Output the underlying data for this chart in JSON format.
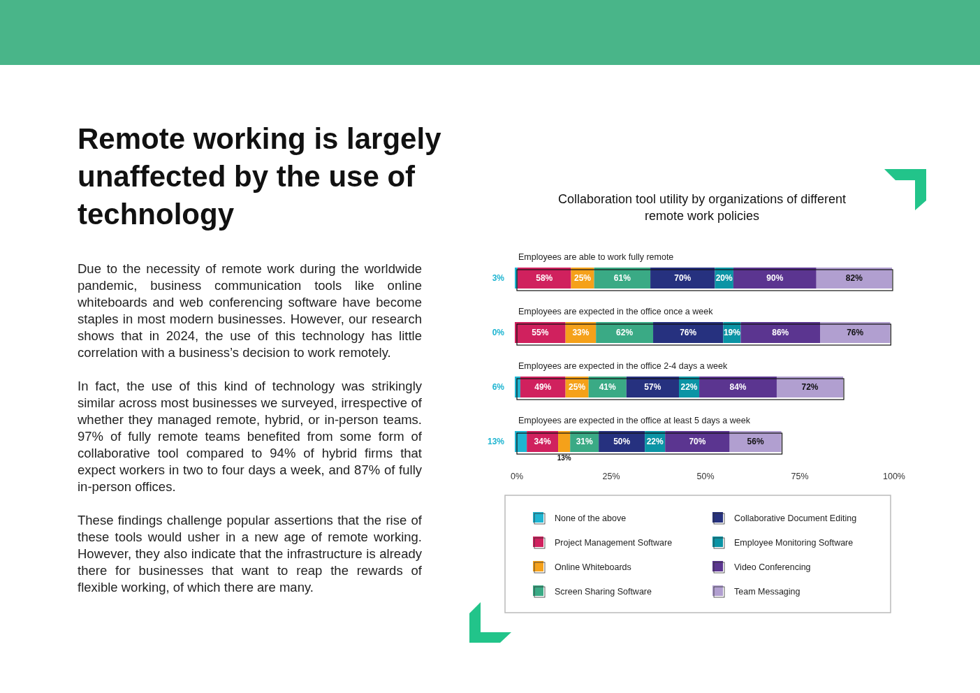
{
  "chart_data": {
    "type": "bar",
    "orientation": "horizontal",
    "stacked": true,
    "title": "Remote working is largely unaffected by the use of technology",
    "subtitle": "Collaboration tool utility by organizations of different remote work policies",
    "annotations": [
      "Due to the necessity of remote work during the worldwide pandemic, business communication tools like online whiteboards and web conferencing software have become staples in most modern businesses. However, our research shows that in 2024, the use of this technology has little correlation with a business’s decision to work remotely.",
      "In fact, the use of this kind of technology was strikingly similar across most businesses we surveyed, irrespective of whether they managed remote, hybrid, or in-person teams. 97% of fully remote teams benefited from some form of collaborative tool compared to 94% of hybrid firms that expect workers in two to four days a week, and 87% of fully in-person offices.",
      "These findings challenge popular assertions that the rise of these tools would usher in a new age of remote working. However, they also indicate that the infrastructure is already there for businesses that want to reap the rewards of flexible working, of which there are many.",
      "0%",
      "25%",
      "50%",
      "75%",
      "100%"
    ],
    "categories": [
      "Employees are able to work fully remote",
      "Employees are expected in the office once a week",
      "Employees are expected in the office 2-4 days a week",
      "Employees are expected in the office at least 5 days a week"
    ],
    "series": [
      {
        "name": "None of the above",
        "color": "#1fb5d1",
        "values": [
          3,
          0,
          6,
          13
        ],
        "value_labels": [
          "3%",
          "0%",
          "6%",
          "13%"
        ]
      },
      {
        "name": "Project Management Software",
        "color": "#d0215e",
        "values": [
          58,
          55,
          49,
          34
        ],
        "value_labels": [
          "58%",
          "55%",
          "49%",
          "34%"
        ]
      },
      {
        "name": "Online Whiteboards",
        "color": "#f5a11a",
        "values": [
          25,
          33,
          25,
          13
        ],
        "value_labels": [
          "25%",
          "33%",
          "25%",
          "13%"
        ]
      },
      {
        "name": "Screen Sharing Software",
        "color": "#3aaa85",
        "values": [
          61,
          62,
          41,
          31
        ],
        "value_labels": [
          "61%",
          "62%",
          "41%",
          "31%"
        ]
      },
      {
        "name": "Collaborative Document Editing",
        "color": "#26317f",
        "values": [
          70,
          76,
          57,
          50
        ],
        "value_labels": [
          "70%",
          "76%",
          "57%",
          "50%"
        ]
      },
      {
        "name": "Employee Monitoring Software",
        "color": "#0b94a5",
        "values": [
          20,
          19,
          22,
          22
        ],
        "value_labels": [
          "20%",
          "19%",
          "22%",
          "22%"
        ]
      },
      {
        "name": "Video Conferencing",
        "color": "#5b3590",
        "values": [
          90,
          86,
          84,
          70
        ],
        "value_labels": [
          "90%",
          "86%",
          "84%",
          "70%"
        ]
      },
      {
        "name": "Team Messaging",
        "color": "#b19fd0",
        "values": [
          82,
          76,
          72,
          56
        ],
        "value_labels": [
          "82%",
          "76%",
          "72%",
          "56%"
        ]
      }
    ],
    "legend": "bottom"
  }
}
